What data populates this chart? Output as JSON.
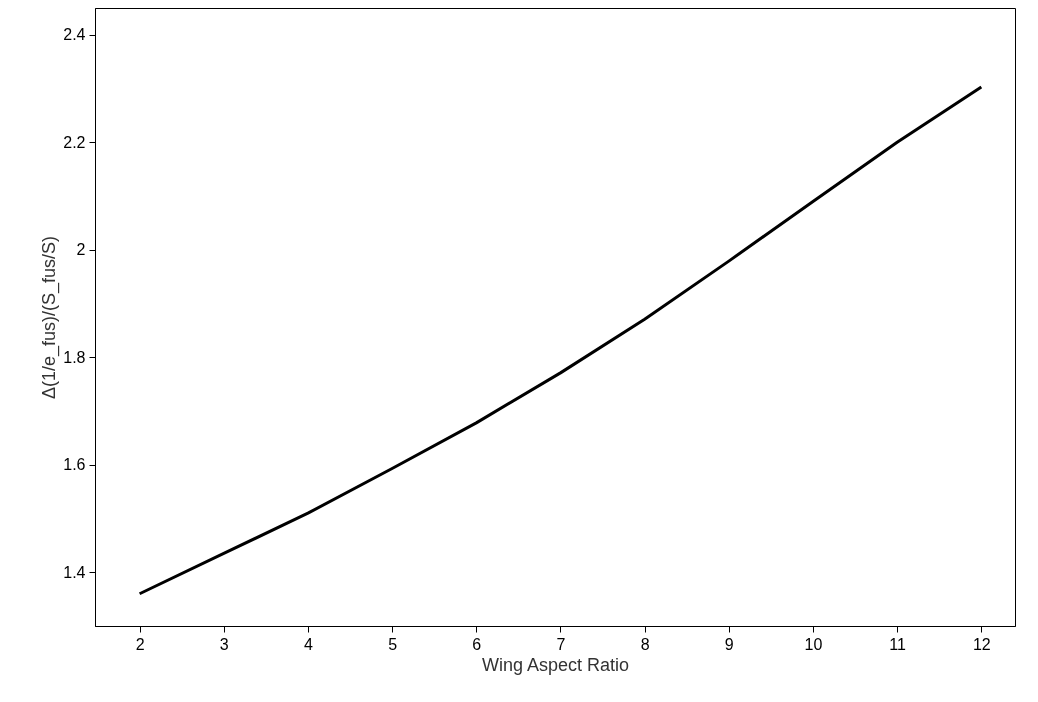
{
  "chart_data": {
    "type": "line",
    "xlabel": "Wing Aspect Ratio",
    "ylabel": "Δ(1/e_fus)/(S_fus/S)",
    "x": [
      2,
      3,
      4,
      5,
      6,
      7,
      8,
      9,
      10,
      11,
      12
    ],
    "series": [
      {
        "color": "#000000",
        "values": [
          1.36,
          1.435,
          1.51,
          1.593,
          1.678,
          1.771,
          1.871,
          1.979,
          2.09,
          2.2,
          2.303
        ]
      }
    ],
    "xlim": [
      1.47,
      12.4
    ],
    "ylim": [
      1.3,
      2.45
    ],
    "xticks": [
      2,
      3,
      4,
      5,
      6,
      7,
      8,
      9,
      10,
      11,
      12
    ],
    "yticks": [
      1.4,
      1.6,
      1.8,
      2,
      2.2,
      2.4
    ],
    "grid": false,
    "legend": false,
    "marker": "none",
    "line_style": "solid"
  }
}
